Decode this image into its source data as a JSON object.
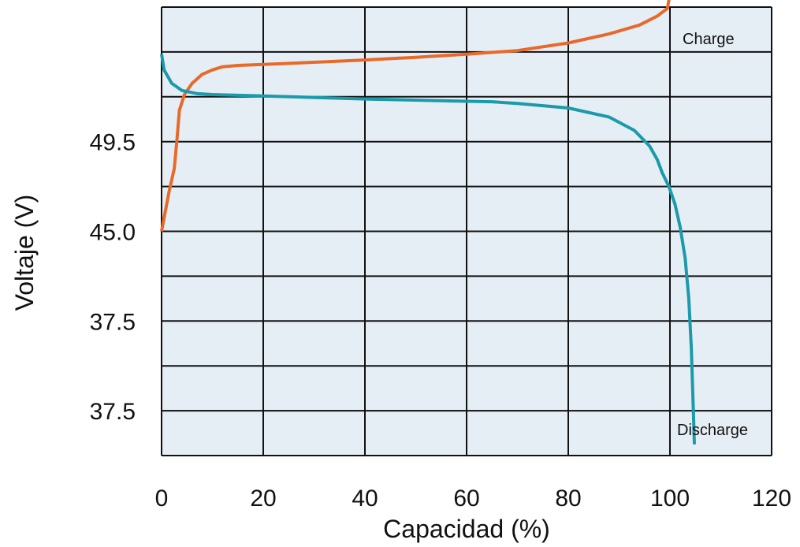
{
  "chart_data": {
    "type": "line",
    "title": "",
    "xlabel": "Capacidad (%)",
    "ylabel": "Voltaje (V)",
    "xlim": [
      0,
      120
    ],
    "x_ticks": [
      "0",
      "20",
      "40",
      "60",
      "80",
      "100",
      "120"
    ],
    "y_tick_labels": [
      "49.5",
      "45.0",
      "37.5",
      "37.5"
    ],
    "y_tick_rows": [
      3,
      5,
      7,
      9
    ],
    "y_rows": 10,
    "grid": true,
    "background_color": "#e6eef5",
    "grid_color": "#111111",
    "series": [
      {
        "name": "Charge",
        "color": "#e8692a",
        "points": [
          [
            0,
            5.0
          ],
          [
            0.5,
            4.7
          ],
          [
            1.5,
            4.1
          ],
          [
            2.5,
            3.6
          ],
          [
            3,
            3.0
          ],
          [
            3.5,
            2.3
          ],
          [
            4.5,
            1.95
          ],
          [
            6,
            1.7
          ],
          [
            8,
            1.5
          ],
          [
            10,
            1.4
          ],
          [
            12,
            1.33
          ],
          [
            15,
            1.3
          ],
          [
            20,
            1.28
          ],
          [
            30,
            1.23
          ],
          [
            40,
            1.18
          ],
          [
            50,
            1.12
          ],
          [
            60,
            1.05
          ],
          [
            70,
            0.97
          ],
          [
            80,
            0.8
          ],
          [
            88,
            0.6
          ],
          [
            94,
            0.4
          ],
          [
            97.5,
            0.2
          ],
          [
            99.5,
            0.03
          ],
          [
            100,
            -0.3
          ],
          [
            100,
            -0.7
          ],
          [
            105,
            -0.7
          ]
        ]
      },
      {
        "name": "Discharge",
        "color": "#1b9aaa",
        "points": [
          [
            0,
            1.05
          ],
          [
            0.5,
            1.4
          ],
          [
            2,
            1.7
          ],
          [
            4,
            1.86
          ],
          [
            7,
            1.93
          ],
          [
            10,
            1.95
          ],
          [
            20,
            1.98
          ],
          [
            40,
            2.05
          ],
          [
            60,
            2.1
          ],
          [
            65,
            2.11
          ],
          [
            70,
            2.15
          ],
          [
            80,
            2.25
          ],
          [
            88,
            2.45
          ],
          [
            93,
            2.75
          ],
          [
            96,
            3.1
          ],
          [
            97.5,
            3.4
          ],
          [
            98.5,
            3.7
          ],
          [
            99.8,
            4.0
          ],
          [
            101,
            4.4
          ],
          [
            102,
            4.9
          ],
          [
            103,
            5.6
          ],
          [
            103.7,
            6.5
          ],
          [
            104.2,
            7.6
          ],
          [
            104.6,
            9.0
          ],
          [
            104.8,
            9.75
          ]
        ]
      }
    ]
  }
}
